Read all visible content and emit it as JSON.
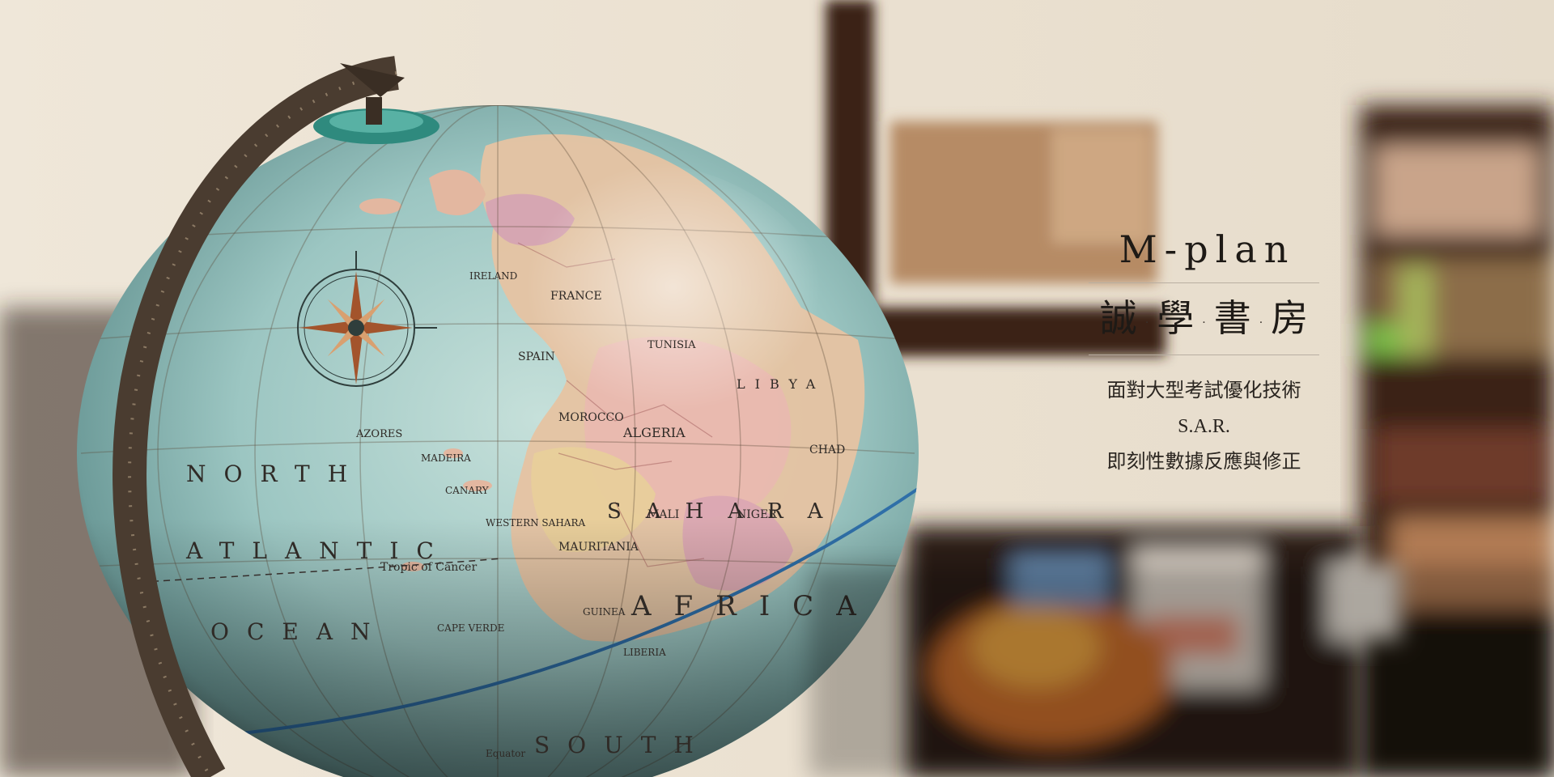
{
  "brand": {
    "title": "M-plan",
    "subtitle_chars": [
      "誠",
      "學",
      "書",
      "房"
    ],
    "separator": "·"
  },
  "tagline": {
    "line1": "面對大型考試優化技術",
    "line2": "S.A.R.",
    "line3": "即刻性數據反應與修正"
  },
  "globe": {
    "labels": {
      "ocean_north": "NORTH",
      "ocean_atlantic": "ATLANTIC",
      "ocean_word": "OCEAN",
      "africa": "AFRICA",
      "sahara": "SAHARA",
      "algeria": "ALGERIA",
      "libya": "LIBYA",
      "morocco": "MOROCCO",
      "mauritania": "MAURITANIA",
      "mali": "MALI",
      "niger": "NIGER",
      "chad": "CHAD",
      "azores": "AZORES",
      "madeira": "MADEIRA",
      "canary": "CANARY",
      "cape_verde": "CAPE VERDE",
      "tropic": "Tropic of Cancer",
      "south": "SOUTH",
      "western_sahara": "WESTERN SAHARA",
      "guinea": "GUINEA",
      "liberia": "LIBERIA",
      "ireland": "IRELAND",
      "spain": "SPAIN",
      "france": "FRANCE",
      "tunisia": "TUNISIA",
      "equator": "Equator"
    }
  },
  "colors": {
    "wall": "#ece4d6",
    "ocean": "#9fc9c7",
    "land": "#e8c4a6",
    "meridian": "#5b4a3a",
    "text_dark": "#1e1a16"
  }
}
